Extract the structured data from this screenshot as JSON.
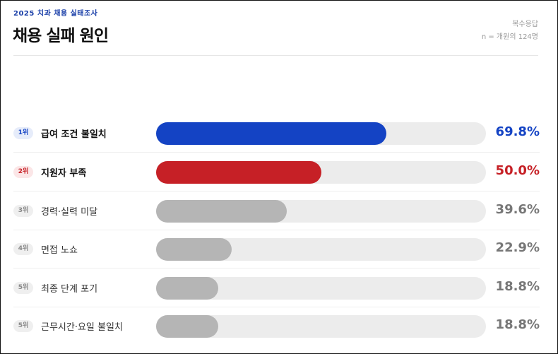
{
  "header": {
    "kicker": "2025 치과 채용 실태조사",
    "title": "채용 실패 원인",
    "note": "복수응답",
    "sample": "n = 개원의 124명"
  },
  "chart_data": {
    "type": "bar",
    "orientation": "horizontal",
    "title": "채용 실패 원인",
    "xlim": [
      0,
      100
    ],
    "unit": "%",
    "categories": [
      "급여 조건 불일치",
      "지원자 부족",
      "경력·실력 미달",
      "면접 노쇼",
      "최종 단계 포기",
      "근무시간·요일 불일치"
    ],
    "ranks": [
      "1위",
      "2위",
      "3위",
      "4위",
      "5위",
      "5위"
    ],
    "values": [
      69.8,
      50.0,
      39.6,
      22.9,
      18.8,
      18.8
    ],
    "value_labels": [
      "69.8%",
      "50.0%",
      "39.6%",
      "22.9%",
      "18.8%",
      "18.8%"
    ],
    "colors": [
      "#1443c4",
      "#c62026",
      "#b5b5b5",
      "#b5b5b5",
      "#b5b5b5",
      "#b5b5b5"
    ],
    "rank_bg": [
      "#e6ecfa",
      "#fbe6e7",
      "#efefef",
      "#efefef",
      "#efefef",
      "#efefef"
    ],
    "rank_fg": [
      "#1443c4",
      "#c62026",
      "#888888",
      "#888888",
      "#888888",
      "#888888"
    ],
    "value_colors": [
      "#1443c4",
      "#c62026",
      "#777777",
      "#777777",
      "#777777",
      "#777777"
    ],
    "grid": false
  }
}
